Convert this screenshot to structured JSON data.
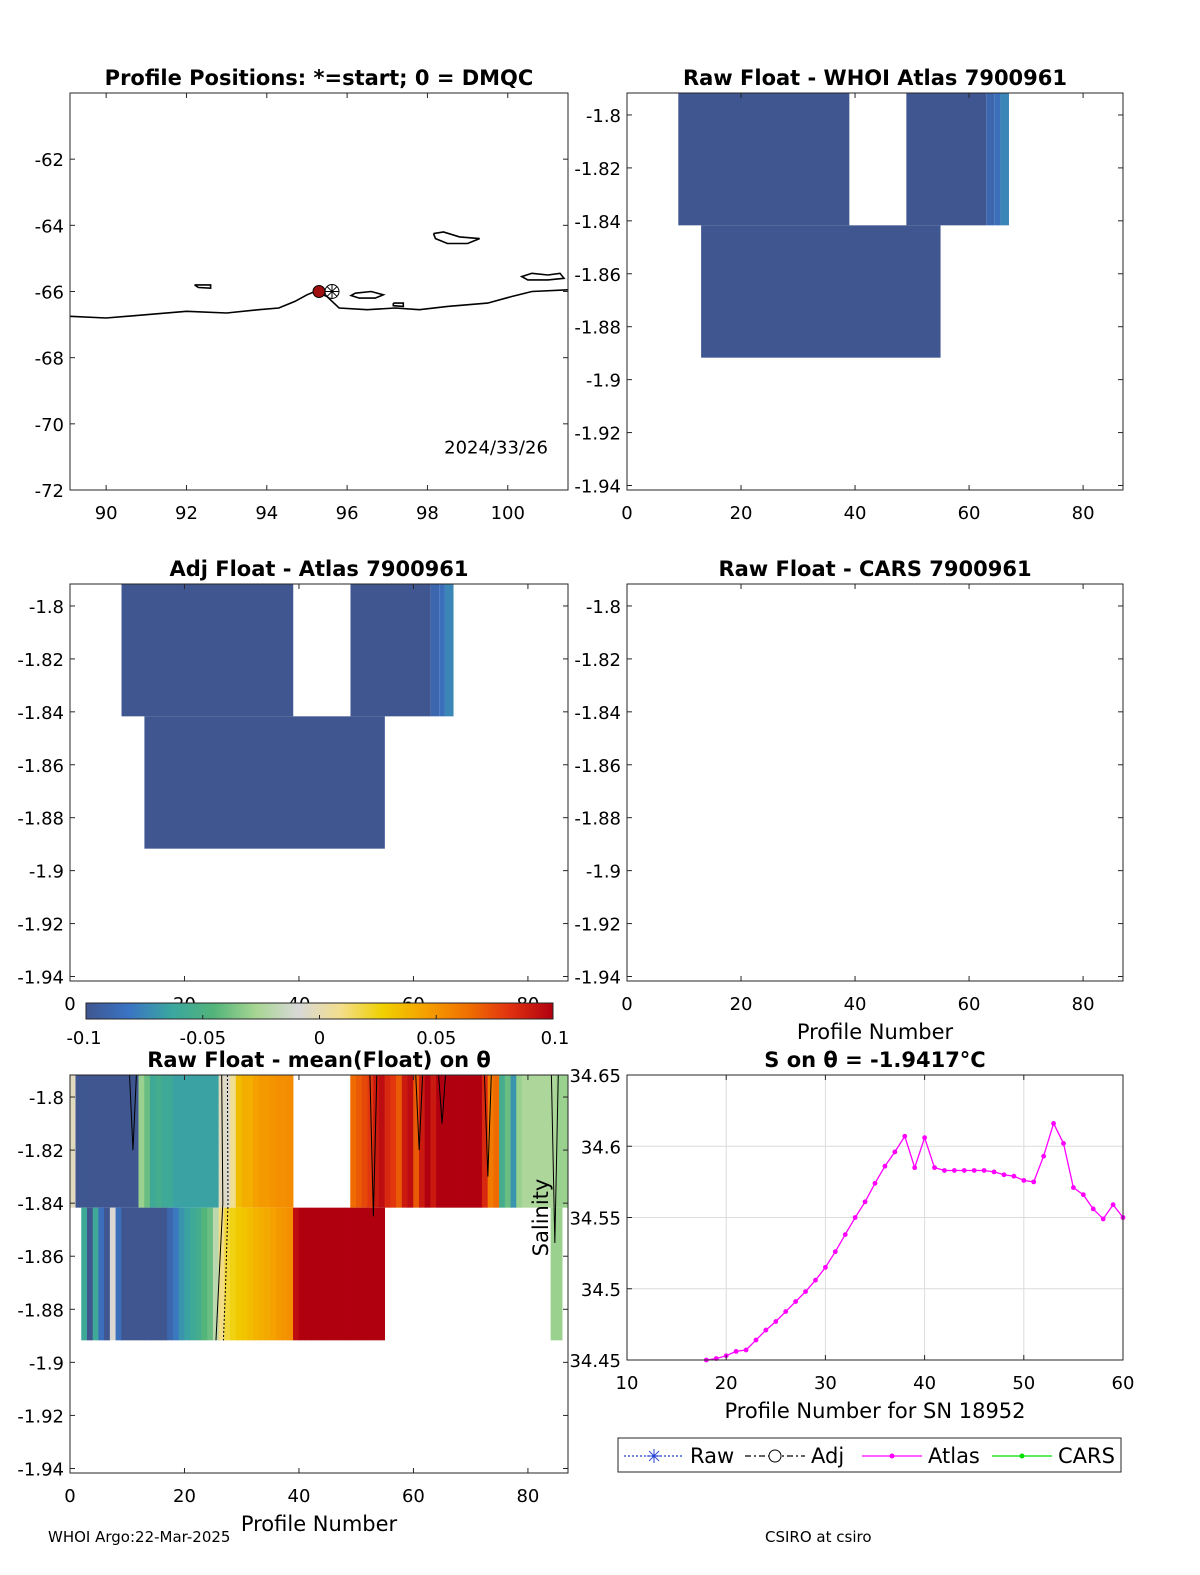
{
  "footer": {
    "left": "WHOI Argo:22-Mar-2025",
    "right": "CSIRO at csiro"
  },
  "colors": {
    "plot_bg": "#ffffff",
    "axis": "#262626",
    "atlas_line": "#ff00ff",
    "cars_line": "#00e000",
    "raw_marker": "#1f3fd0",
    "dot": "#a01010"
  },
  "colorbar": {
    "ticks": [
      "-0.1",
      "-0.05",
      "0",
      "0.05",
      "0.1"
    ],
    "min": -0.1,
    "max": 0.1,
    "palette": [
      "#3f5690",
      "#3a73c4",
      "#3aa6a0",
      "#52b47a",
      "#a7d692",
      "#d8d8d8",
      "#f2de8c",
      "#f0d000",
      "#f5a000",
      "#f07000",
      "#e03010",
      "#b00010"
    ]
  },
  "chart_data": [
    {
      "id": "positions",
      "type": "map",
      "title": "Profile Positions: *=start; 0 = DMQC",
      "xlim": [
        89.1,
        101.5
      ],
      "ylim": [
        -72,
        -60
      ],
      "xticks": [
        "90",
        "92",
        "94",
        "96",
        "98",
        "100"
      ],
      "yticks": [
        "-62",
        "-64",
        "-66",
        "-68",
        "-70",
        "-72"
      ],
      "annotation": "2024/33/26",
      "float_position": {
        "lon": 95.3,
        "lat": -66.0
      },
      "coastline": [
        [
          89.1,
          -66.75
        ],
        [
          90,
          -66.8
        ],
        [
          91,
          -66.7
        ],
        [
          92,
          -66.6
        ],
        [
          93,
          -66.65
        ],
        [
          93.8,
          -66.55
        ],
        [
          94.3,
          -66.5
        ],
        [
          94.7,
          -66.3
        ],
        [
          95,
          -66.1
        ],
        [
          95.2,
          -66.0
        ],
        [
          95.5,
          -66.15
        ],
        [
          95.8,
          -66.5
        ],
        [
          96.5,
          -66.55
        ],
        [
          97.2,
          -66.5
        ],
        [
          97.8,
          -66.55
        ],
        [
          98.5,
          -66.45
        ],
        [
          99.5,
          -66.35
        ],
        [
          100.1,
          -66.15
        ],
        [
          100.6,
          -66.0
        ],
        [
          101.5,
          -65.95
        ]
      ],
      "islands": [
        [
          [
            98.15,
            -64.25
          ],
          [
            98.4,
            -64.2
          ],
          [
            98.8,
            -64.35
          ],
          [
            99.3,
            -64.4
          ],
          [
            99.0,
            -64.55
          ],
          [
            98.5,
            -64.55
          ],
          [
            98.2,
            -64.4
          ],
          [
            98.15,
            -64.25
          ]
        ],
        [
          [
            101.0,
            -65.5
          ],
          [
            101.3,
            -65.45
          ],
          [
            101.4,
            -65.6
          ],
          [
            101.0,
            -65.65
          ],
          [
            100.5,
            -65.65
          ],
          [
            100.35,
            -65.55
          ],
          [
            100.6,
            -65.45
          ],
          [
            101.0,
            -65.5
          ]
        ],
        [
          [
            96.2,
            -66.05
          ],
          [
            96.6,
            -66.0
          ],
          [
            96.9,
            -66.1
          ],
          [
            96.7,
            -66.2
          ],
          [
            96.3,
            -66.2
          ],
          [
            96.1,
            -66.12
          ],
          [
            96.2,
            -66.05
          ]
        ],
        [
          [
            92.2,
            -65.8
          ],
          [
            92.6,
            -65.8
          ],
          [
            92.6,
            -65.9
          ],
          [
            92.3,
            -65.88
          ],
          [
            92.2,
            -65.8
          ]
        ],
        [
          [
            97.15,
            -66.35
          ],
          [
            97.4,
            -66.35
          ],
          [
            97.4,
            -66.45
          ],
          [
            97.15,
            -66.43
          ],
          [
            97.15,
            -66.35
          ]
        ]
      ]
    },
    {
      "id": "raw_atlas",
      "type": "heatmap",
      "title": "Raw Float - WHOI Atlas  7900961",
      "xlim": [
        0,
        87
      ],
      "ylim": [
        -1.9417,
        -1.7917
      ],
      "xticks": [
        "0",
        "20",
        "40",
        "60",
        "80"
      ],
      "yticks": [
        "-1.8",
        "-1.82",
        "-1.84",
        "-1.86",
        "-1.88",
        "-1.9",
        "-1.92",
        "-1.94"
      ],
      "cells": [
        {
          "x0": 9,
          "x1": 39,
          "y0": -1.8417,
          "y1": -1.7917,
          "v": -0.1
        },
        {
          "x0": 49,
          "x1": 63,
          "y0": -1.8417,
          "y1": -1.7917,
          "v": -0.1
        },
        {
          "x0": 63,
          "x1": 64.5,
          "y0": -1.8417,
          "y1": -1.7917,
          "v": -0.09
        },
        {
          "x0": 64.5,
          "x1": 65.5,
          "y0": -1.8417,
          "y1": -1.7917,
          "v": -0.085
        },
        {
          "x0": 65.5,
          "x1": 67,
          "y0": -1.8417,
          "y1": -1.7917,
          "v": -0.075
        },
        {
          "x0": 13,
          "x1": 55,
          "y0": -1.8917,
          "y1": -1.8417,
          "v": -0.1
        }
      ]
    },
    {
      "id": "adj_atlas",
      "type": "heatmap",
      "title": "Adj Float - Atlas  7900961",
      "xlim": [
        0,
        87
      ],
      "ylim": [
        -1.9417,
        -1.7917
      ],
      "xticks": [
        "0",
        "20",
        "40",
        "60",
        "80"
      ],
      "yticks": [
        "-1.8",
        "-1.82",
        "-1.84",
        "-1.86",
        "-1.88",
        "-1.9",
        "-1.92",
        "-1.94"
      ],
      "cells": [
        {
          "x0": 9,
          "x1": 39,
          "y0": -1.8417,
          "y1": -1.7917,
          "v": -0.1
        },
        {
          "x0": 49,
          "x1": 63,
          "y0": -1.8417,
          "y1": -1.7917,
          "v": -0.1
        },
        {
          "x0": 63,
          "x1": 64.5,
          "y0": -1.8417,
          "y1": -1.7917,
          "v": -0.09
        },
        {
          "x0": 64.5,
          "x1": 65.5,
          "y0": -1.8417,
          "y1": -1.7917,
          "v": -0.085
        },
        {
          "x0": 65.5,
          "x1": 67,
          "y0": -1.8417,
          "y1": -1.7917,
          "v": -0.075
        },
        {
          "x0": 13,
          "x1": 55,
          "y0": -1.8917,
          "y1": -1.8417,
          "v": -0.1
        }
      ]
    },
    {
      "id": "raw_cars",
      "type": "heatmap",
      "title": "Raw Float - CARS  7900961",
      "xlabel": "Profile Number",
      "xlim": [
        0,
        87
      ],
      "ylim": [
        -1.9417,
        -1.7917
      ],
      "xticks": [
        "0",
        "20",
        "40",
        "60",
        "80"
      ],
      "yticks": [
        "-1.8",
        "-1.82",
        "-1.84",
        "-1.86",
        "-1.88",
        "-1.9",
        "-1.92",
        "-1.94"
      ],
      "cells": []
    },
    {
      "id": "raw_mean",
      "type": "heatmap",
      "title": "Raw Float - mean(Float) on θ",
      "xlabel": "Profile Number",
      "xlim": [
        0,
        87
      ],
      "ylim": [
        -1.9417,
        -1.7917
      ],
      "xticks": [
        "0",
        "20",
        "40",
        "60",
        "80"
      ],
      "yticks": [
        "-1.8",
        "-1.82",
        "-1.84",
        "-1.86",
        "-1.88",
        "-1.9",
        "-1.92",
        "-1.94"
      ],
      "upper_values": [
        -0.003,
        -0.1,
        -0.1,
        -0.1,
        -0.1,
        -0.1,
        -0.1,
        -0.1,
        -0.1,
        -0.1,
        -0.1,
        -0.1,
        -0.03,
        -0.04,
        -0.06,
        -0.055,
        -0.06,
        -0.06,
        -0.065,
        -0.065,
        -0.065,
        -0.065,
        -0.065,
        -0.065,
        -0.065,
        -0.065,
        -0.003,
        -0.006,
        0.008,
        0.035,
        0.04,
        0.04,
        0.045,
        0.048,
        0.048,
        0.05,
        0.052,
        0.052,
        0.053,
        null,
        null,
        null,
        null,
        null,
        null,
        null,
        null,
        null,
        null,
        0.065,
        0.07,
        0.075,
        0.08,
        0.09,
        0.095,
        0.085,
        0.08,
        0.07,
        0.09,
        0.095,
        0.07,
        0.09,
        0.1,
        0.09,
        0.1,
        0.1,
        0.1,
        0.1,
        0.1,
        0.1,
        0.1,
        0.1,
        0.085,
        0.06,
        0.065,
        -0.055,
        -0.04,
        -0.07,
        -0.03,
        -0.025,
        -0.025,
        -0.025,
        -0.025,
        -0.025,
        -0.025,
        -0.03,
        -0.03
      ],
      "lower_values": [
        null,
        null,
        -0.06,
        -0.1,
        -0.06,
        -0.085,
        -0.1,
        -0.008,
        -0.085,
        -0.1,
        -0.1,
        -0.1,
        -0.1,
        -0.1,
        -0.1,
        -0.1,
        -0.1,
        -0.09,
        -0.08,
        -0.07,
        -0.065,
        -0.06,
        -0.055,
        -0.045,
        -0.04,
        -0.02,
        0.01,
        0.02,
        0.025,
        0.03,
        0.032,
        0.035,
        0.038,
        0.04,
        0.042,
        0.045,
        0.048,
        0.05,
        0.052,
        0.095,
        0.1,
        0.1,
        0.1,
        0.1,
        0.1,
        0.1,
        0.1,
        0.1,
        0.1,
        0.1,
        0.1,
        0.1,
        0.1,
        0.1,
        0.1,
        null,
        null,
        null,
        null,
        null,
        null,
        null,
        null,
        null,
        null,
        null,
        null,
        null,
        null,
        null,
        null,
        null,
        null,
        null,
        null,
        null,
        null,
        null,
        null,
        null,
        null,
        null,
        null,
        null,
        -0.03,
        -0.03,
        null
      ],
      "upper_y": [
        -1.8417,
        -1.7917
      ],
      "lower_y": [
        -1.8917,
        -1.8417
      ]
    },
    {
      "id": "s_on_theta",
      "type": "line",
      "title": "S on θ = -1.9417°C",
      "xlabel": "Profile Number for SN 18952",
      "ylabel": "Salinity",
      "xlim": [
        10,
        60
      ],
      "ylim": [
        34.45,
        34.65
      ],
      "xticks": [
        "10",
        "20",
        "30",
        "40",
        "50",
        "60"
      ],
      "yticks": [
        "34.45",
        "34.5",
        "34.55",
        "34.6",
        "34.65"
      ],
      "grid": true,
      "legend": {
        "position": "below",
        "entries": [
          "Raw",
          "Adj",
          "Atlas",
          "CARS"
        ]
      },
      "series": [
        {
          "name": "Atlas",
          "x": [
            18,
            19,
            20,
            21,
            22,
            23,
            24,
            25,
            26,
            27,
            28,
            29,
            30,
            31,
            32,
            33,
            34,
            35,
            36,
            37,
            38,
            39,
            40,
            41,
            42,
            43,
            44,
            45,
            46,
            47,
            48,
            49,
            50,
            51,
            52,
            53,
            54,
            55,
            56,
            57,
            58,
            59,
            60
          ],
          "y": [
            34.45,
            34.451,
            34.453,
            34.456,
            34.457,
            34.464,
            34.471,
            34.477,
            34.484,
            34.491,
            34.498,
            34.506,
            34.515,
            34.526,
            34.538,
            34.55,
            34.561,
            34.574,
            34.586,
            34.596,
            34.607,
            34.585,
            34.606,
            34.585,
            34.583,
            34.583,
            34.583,
            34.583,
            34.583,
            34.582,
            34.58,
            34.579,
            34.576,
            34.575,
            34.593,
            34.616,
            34.602,
            34.571,
            34.566,
            34.556,
            34.549,
            34.559,
            34.55
          ]
        }
      ]
    }
  ]
}
